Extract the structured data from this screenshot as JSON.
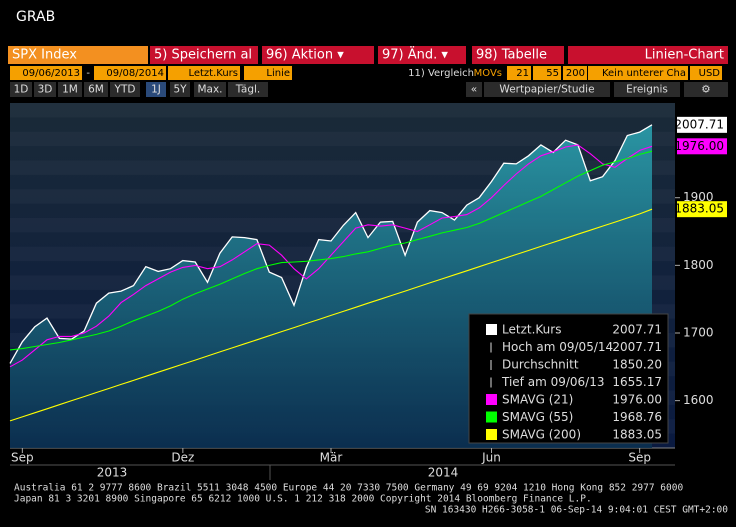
{
  "window_title": "GRAB",
  "tabs": [
    "SPX Index",
    "5) Speichern al",
    "96) Aktion ▾",
    "97) Änd. ▾",
    "98) Tabelle",
    "Linien-Chart"
  ],
  "settings": [
    "09/06/2013",
    "-",
    "09/08/2014",
    "Letzt.Kurs",
    "Linie",
    "11) Vergleich",
    "MOVs",
    "21",
    "55",
    "200",
    "Kein unterer Cha",
    "USD"
  ],
  "toolbar": [
    "1D",
    "3D",
    "1M",
    "6M",
    "YTD",
    "1J",
    "5Y",
    "Max.",
    "Tägl.",
    "«",
    "Wertpapier/Studie",
    "Ereignis",
    "⚙"
  ],
  "legend_rows": [
    {
      "label": "Letzt.Kurs",
      "value": "2007.71"
    },
    {
      "label": "Hoch am 09/05/14",
      "value": "2007.71"
    },
    {
      "label": "Durchschnitt",
      "value": "1850.20"
    },
    {
      "label": "Tief am 09/06/13",
      "value": "1655.17"
    },
    {
      "label": "SMAVG (21)",
      "value": "1976.00"
    },
    {
      "label": "SMAVG (55)",
      "value": "1968.76"
    },
    {
      "label": "SMAVG (200)",
      "value": "1883.05"
    }
  ],
  "footer": [
    "Australia 61 2 9777 8600 Brazil 5511 3048 4500 Europe 44 20 7330 7500 Germany 49 69 9204 1210 Hong Kong 852 2977 6000",
    "Japan 81 3 3201 8900         Singapore 65 6212 1000         U.S. 1 212 318 2000         Copyright 2014 Bloomberg Finance L.P.",
    "SN 163430 H266-3058-1 06-Sep-14  9:04:01 CEST GMT+2:00"
  ],
  "chart_data": {
    "type": "line",
    "categories": [
      null,
      "Sep",
      null,
      null,
      null,
      null,
      null,
      null,
      null,
      null,
      null,
      null,
      null,
      null,
      "Dez",
      null,
      null,
      null,
      null,
      null,
      null,
      null,
      null,
      null,
      null,
      null,
      "Mär",
      null,
      null,
      null,
      null,
      null,
      null,
      null,
      null,
      null,
      null,
      null,
      null,
      "Jun",
      null,
      null,
      null,
      null,
      null,
      null,
      null,
      null,
      null,
      null,
      null,
      "Sep",
      null
    ],
    "year_labels": [
      "2013",
      "2014"
    ],
    "series": [
      {
        "name": "Letzt.Kurs",
        "color": "#ffffff",
        "values": [
          1655,
          1687,
          1709,
          1722,
          1692,
          1691,
          1703,
          1744,
          1759,
          1762,
          1770,
          1798,
          1791,
          1795,
          1807,
          1805,
          1775,
          1818,
          1842,
          1841,
          1838,
          1790,
          1782,
          1741,
          1797,
          1838,
          1836,
          1859,
          1878,
          1841,
          1864,
          1865,
          1815,
          1864,
          1881,
          1878,
          1867,
          1889,
          1900,
          1924,
          1951,
          1950,
          1962,
          1978,
          1967,
          1985,
          1978,
          1925,
          1931,
          1955,
          1992,
          1997,
          2007.71
        ]
      },
      {
        "name": "SMAVG (21)",
        "color": "#ff00ff",
        "values": [
          1650,
          1660,
          1675,
          1690,
          1695,
          1695,
          1700,
          1710,
          1725,
          1745,
          1757,
          1770,
          1780,
          1790,
          1797,
          1800,
          1795,
          1798,
          1808,
          1820,
          1832,
          1830,
          1815,
          1795,
          1780,
          1795,
          1815,
          1835,
          1855,
          1860,
          1858,
          1860,
          1855,
          1850,
          1860,
          1870,
          1872,
          1875,
          1885,
          1900,
          1918,
          1935,
          1950,
          1962,
          1968,
          1975,
          1978,
          1965,
          1950,
          1945,
          1958,
          1970,
          1976
        ]
      },
      {
        "name": "SMAVG (55)",
        "color": "#00ff00",
        "values": [
          1675,
          1677,
          1680,
          1683,
          1686,
          1690,
          1694,
          1698,
          1703,
          1710,
          1718,
          1725,
          1732,
          1740,
          1750,
          1758,
          1765,
          1772,
          1780,
          1788,
          1795,
          1800,
          1804,
          1805,
          1806,
          1808,
          1810,
          1813,
          1817,
          1820,
          1825,
          1830,
          1833,
          1838,
          1843,
          1848,
          1852,
          1856,
          1862,
          1870,
          1878,
          1886,
          1894,
          1902,
          1912,
          1922,
          1932,
          1940,
          1948,
          1953,
          1958,
          1964,
          1968.76
        ]
      },
      {
        "name": "SMAVG (200)",
        "color": "#ffff00",
        "values": [
          1570,
          1576,
          1582,
          1588,
          1594,
          1600,
          1606,
          1612,
          1618,
          1624,
          1630,
          1636,
          1642,
          1648,
          1654,
          1660,
          1666,
          1672,
          1678,
          1684,
          1690,
          1696,
          1702,
          1708,
          1714,
          1720,
          1726,
          1732,
          1738,
          1744,
          1750,
          1756,
          1762,
          1768,
          1774,
          1780,
          1786,
          1792,
          1798,
          1804,
          1810,
          1816,
          1822,
          1828,
          1834,
          1840,
          1846,
          1852,
          1858,
          1864,
          1870,
          1876,
          1883.05
        ]
      }
    ],
    "ylim": [
      1530,
      2040
    ],
    "yticks": [
      1600,
      1700,
      1800,
      1900
    ],
    "area_color": "#1f7f8f"
  }
}
